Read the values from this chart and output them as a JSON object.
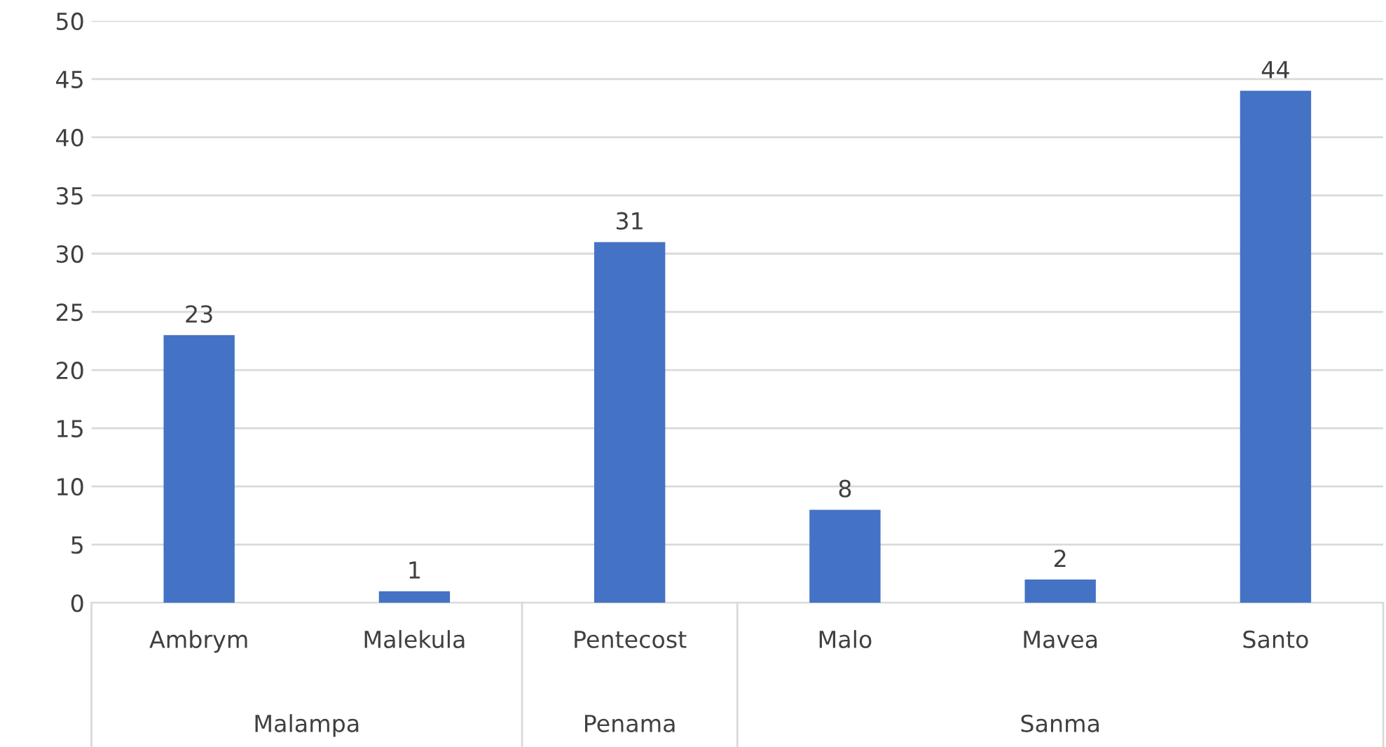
{
  "chart_data": {
    "type": "bar",
    "categories": [
      "Ambrym",
      "Malekula",
      "Pentecost",
      "Malo",
      "Mavea",
      "Santo"
    ],
    "values": [
      23,
      1,
      31,
      8,
      2,
      44
    ],
    "color": "#4472c4",
    "ylim": [
      0,
      50
    ],
    "yticks": [
      0,
      5,
      10,
      15,
      20,
      25,
      30,
      35,
      40,
      45,
      50
    ],
    "grid": "y",
    "data_labels": true,
    "annotations": [
      "Malampa",
      "Penama",
      "Sanma"
    ]
  }
}
